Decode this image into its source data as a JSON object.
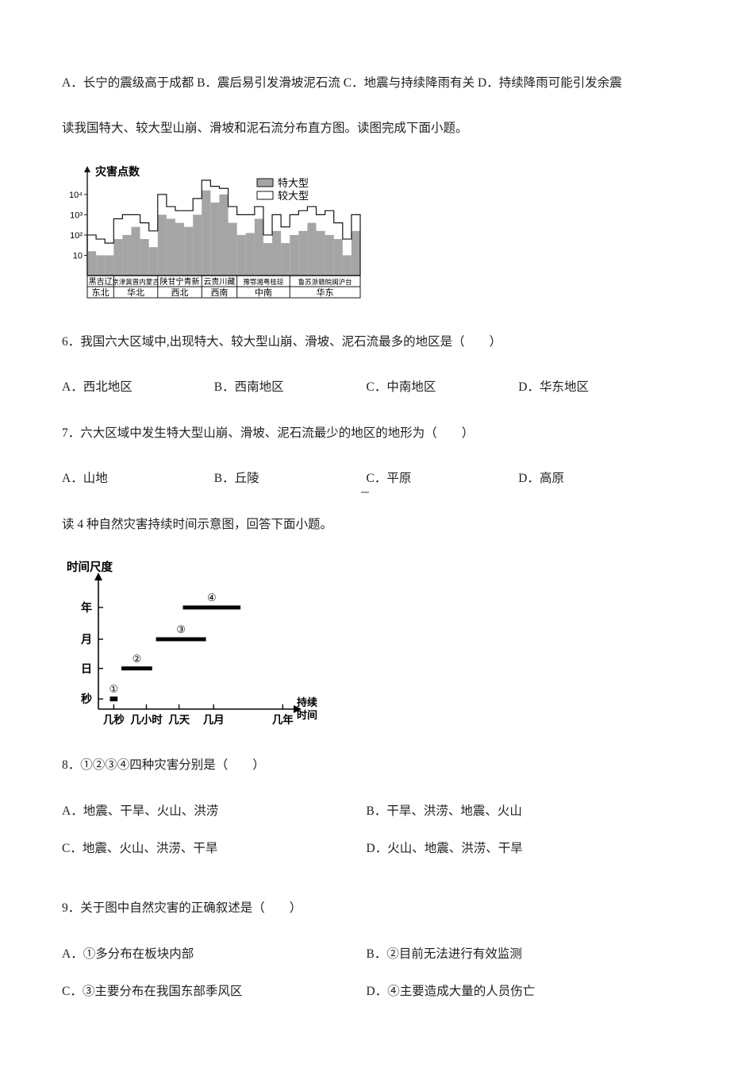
{
  "q5": {
    "line": "A．长宁的震级高于成都 B．震后易引发滑坡泥石流 C．地震与持续降雨有关  D．持续降雨可能引发余震"
  },
  "intro_chart1": "读我国特大、较大型山崩、滑坡和泥石流分布直方图。读图完成下面小题。",
  "chart1": {
    "bg": "#fbfcfb",
    "border": "#1b140e",
    "y_label": "灾害点数",
    "y_ticks": [
      "10⁴",
      "10³",
      "10²",
      "10"
    ],
    "y_values": [
      4,
      3,
      2,
      1
    ],
    "legend": [
      {
        "label": "特大型",
        "fill": "#a5a5a5"
      },
      {
        "label": "较大型",
        "fill": "#ffffff"
      }
    ],
    "provinces": [
      "黑吉辽",
      "京津冀晋内蒙古",
      "陕甘宁青新",
      "云贵川藏",
      "豫鄂湘粤桂琼",
      "鲁苏浙赣皖闽沪台"
    ],
    "regions": [
      "东北",
      "华北",
      "西北",
      "西南",
      "中南",
      "华东"
    ],
    "provinces_in_region": [
      3,
      5,
      5,
      4,
      6,
      8
    ],
    "td_scale_max": 4.7,
    "series_td": [
      1.2,
      1.0,
      1.0,
      1.8,
      2.0,
      2.4,
      1.8,
      1.4,
      3.0,
      2.8,
      2.6,
      2.4,
      3.0,
      4.2,
      3.6,
      4.0,
      2.6,
      2.0,
      2.1,
      2.8,
      1.6,
      2.2,
      1.6,
      2.0,
      2.2,
      2.6,
      2.2,
      2.0,
      1.8,
      1.0,
      2.2
    ],
    "series_jd": [
      2.0,
      1.8,
      1.6,
      2.8,
      3.0,
      3.0,
      2.6,
      2.2,
      4.0,
      3.4,
      3.2,
      3.2,
      3.8,
      4.7,
      4.4,
      4.3,
      3.4,
      3.0,
      3.0,
      3.4,
      2.0,
      3.0,
      2.4,
      3.0,
      3.2,
      3.4,
      3.0,
      3.2,
      2.6,
      1.8,
      3.0
    ]
  },
  "q6": {
    "stem": "6．我国六大区域中,出现特大、较大型山崩、滑坡、泥石流最多的地区是（　　）",
    "opts": [
      "A．西北地区",
      "B．西南地区",
      "C．中南地区",
      "D．华东地区"
    ]
  },
  "q7": {
    "stem": "7．六大区域中发生特大型山崩、滑坡、泥石流最少的地区的地形为（　　）",
    "opts": [
      "A．山地",
      "B．丘陵",
      "C．平原",
      "D．高原"
    ]
  },
  "intro_chart2": "读 4 种自然灾害持续时间示意图，回答下面小题。",
  "chart2": {
    "bg": "#ffffff",
    "stroke": "#060401",
    "y_label": "时间尺度",
    "y_ticks": [
      "年",
      "月",
      "日",
      "秒"
    ],
    "x_ticks": [
      "几秒",
      "几小时",
      "几天",
      "几月",
      "几年"
    ],
    "xlabel_top": "持续",
    "xlabel_bot": "时间",
    "series": [
      {
        "num": "①",
        "x0": 0.06,
        "x1": 0.1,
        "y": 0.08,
        "thick": 6
      },
      {
        "num": "②",
        "x0": 0.12,
        "x1": 0.28,
        "y": 0.32,
        "thick": 5
      },
      {
        "num": "③",
        "x0": 0.3,
        "x1": 0.56,
        "y": 0.55,
        "thick": 5
      },
      {
        "num": "④",
        "x0": 0.44,
        "x1": 0.74,
        "y": 0.8,
        "thick": 5
      }
    ]
  },
  "q8": {
    "stem": "8．①②③④四种灾害分别是（　　）",
    "opts": [
      "A．地震、干旱、火山、洪涝",
      "B．干旱、洪涝、地震、火山",
      "C．地震、火山、洪涝、干旱",
      "D．火山、地震、洪涝、干旱"
    ]
  },
  "q9": {
    "stem": "9．关于图中自然灾害的正确叙述是（　　）",
    "opts": [
      "A．①多分布在板块内部",
      "B．②目前无法进行有效监测",
      "C．③主要分布在我国东部季风区",
      "D．④主要造成大量的人员伤亡"
    ]
  }
}
